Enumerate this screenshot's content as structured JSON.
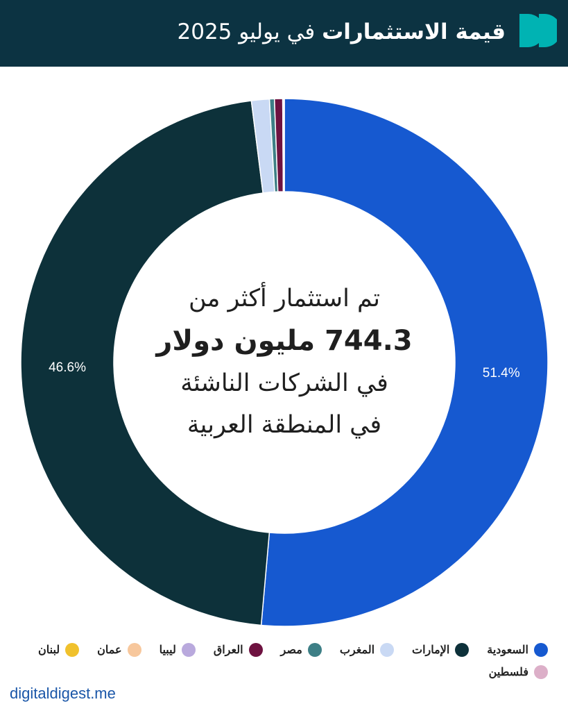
{
  "header": {
    "title_bold": "قيمة الاستثمارات",
    "title_regular": "في يوليو 2025",
    "colors": {
      "background": "#0c3342",
      "logo": "#00b3b3"
    }
  },
  "center": {
    "line1": "تم استثمار أكثر من",
    "line2": "744.3 مليون دولار",
    "line3": "في الشركات الناشئة",
    "line4": "في المنطقة العربية"
  },
  "chart_data": {
    "type": "pie",
    "donut": true,
    "title": "",
    "total_usd_million": 744.3,
    "slices": [
      {
        "name": "السعودية",
        "value": 51.4,
        "color": "#1659d0",
        "label": "51.4%"
      },
      {
        "name": "الإمارات",
        "value": 46.6,
        "color": "#0d313a",
        "label": "46.6%"
      },
      {
        "name": "المغرب",
        "value": 1.1,
        "color": "#c9d9f4",
        "label": ""
      },
      {
        "name": "مصر",
        "value": 0.3,
        "color": "#3d7f86",
        "label": ""
      },
      {
        "name": "العراق",
        "value": 0.5,
        "color": "#6e1240",
        "label": ""
      },
      {
        "name": "ليبيا",
        "value": 0.05,
        "color": "#b9a9dd",
        "label": ""
      },
      {
        "name": "عمان",
        "value": 0.03,
        "color": "#f7c79c",
        "label": ""
      },
      {
        "name": "لبنان",
        "value": 0.01,
        "color": "#f0c12d",
        "label": ""
      },
      {
        "name": "فلسطين",
        "value": 0.01,
        "color": "#dcafc8",
        "label": ""
      }
    ],
    "legend_position": "bottom"
  },
  "footer": {
    "text": "digitaldigest.me"
  }
}
